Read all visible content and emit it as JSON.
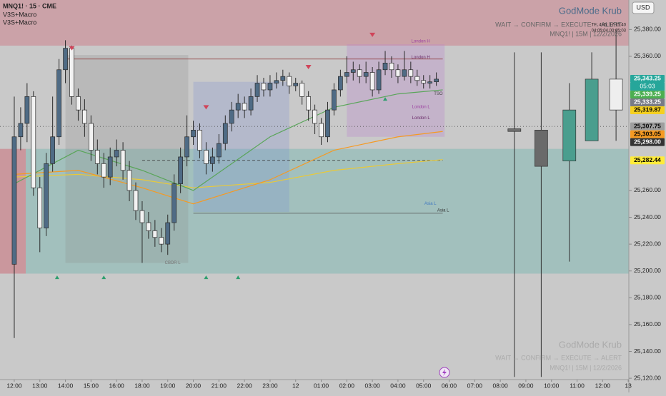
{
  "chart_data": {
    "type": "candlestick",
    "symbol": "MNQ1! · 15 · CME",
    "indicators": [
      "V3S+Macro",
      "V3S+Macro"
    ],
    "watermark": {
      "title": "GodMode Krub",
      "subtitle": "WAIT → CONFIRM → EXECUTE → ALERT",
      "info": "MNQ1! | 15M | 12/2/2026"
    },
    "timer_lines": [
      "TF: 4H5: 17:15:40",
      "04:05:04 00:05:03"
    ],
    "currency": "USD",
    "countdown": "05:03",
    "up_color": "#4f6b85",
    "down_color": "#f2f2f2",
    "ylim": [
      25119,
      25402
    ],
    "yticks": [
      {
        "value": 25380,
        "label": "25,380.00"
      },
      {
        "value": 25360,
        "label": "25,360.00"
      },
      {
        "value": 25260,
        "label": "25,260.00"
      },
      {
        "value": 25240,
        "label": "25,240.00"
      },
      {
        "value": 25220,
        "label": "25,220.00"
      },
      {
        "value": 25200,
        "label": "25,200.00"
      },
      {
        "value": 25180,
        "label": "25,180.00"
      },
      {
        "value": 25160,
        "label": "25,160.00"
      },
      {
        "value": 25140,
        "label": "25,140.00"
      },
      {
        "value": 25120,
        "label": "25,120.00"
      }
    ],
    "xlim": [
      -2.23,
      96.1
    ],
    "xticks": [
      {
        "value": 0,
        "label": "12:00"
      },
      {
        "value": 4,
        "label": "13:00"
      },
      {
        "value": 8,
        "label": "14:00"
      },
      {
        "value": 12,
        "label": "15:00"
      },
      {
        "value": 16,
        "label": "16:00"
      },
      {
        "value": 20,
        "label": "18:00"
      },
      {
        "value": 24,
        "label": "19:00"
      },
      {
        "value": 28,
        "label": "20:00"
      },
      {
        "value": 32,
        "label": "21:00"
      },
      {
        "value": 36,
        "label": "22:00"
      },
      {
        "value": 40,
        "label": "23:00"
      },
      {
        "value": 44,
        "label": "12"
      },
      {
        "value": 48,
        "label": "01:00"
      },
      {
        "value": 52,
        "label": "02:00"
      },
      {
        "value": 56,
        "label": "03:00"
      },
      {
        "value": 60,
        "label": "04:00"
      },
      {
        "value": 64,
        "label": "05:00"
      },
      {
        "value": 68,
        "label": "06:00"
      },
      {
        "value": 72,
        "label": "07:00"
      },
      {
        "value": 76,
        "label": "08:00"
      },
      {
        "value": 80,
        "label": "09:00"
      },
      {
        "value": 84,
        "label": "10:00"
      },
      {
        "value": 88,
        "label": "11:00"
      },
      {
        "value": 92,
        "label": "12:00"
      },
      {
        "value": 96,
        "label": "13"
      }
    ],
    "open": [
      25205,
      25300,
      25310,
      25330,
      25262,
      25232,
      25280,
      25300,
      25350,
      25366,
      25330,
      25320,
      25310,
      25290,
      25280,
      25270,
      25285,
      25290,
      25275,
      25260,
      25245,
      25236,
      25230,
      25225,
      25220,
      25236,
      25265,
      25285,
      25300,
      25305,
      25290,
      25280,
      25285,
      25295,
      25310,
      25320,
      25325,
      25320,
      25330,
      25340,
      25335,
      25340,
      25342,
      25345,
      25338,
      25340,
      25330,
      25320,
      25310,
      25300,
      25320,
      25335,
      25345,
      25348,
      25350,
      25345,
      25348,
      25335,
      25350,
      25355,
      25350,
      25345,
      25350,
      25345,
      25342,
      25340,
      25341
    ],
    "high": [
      25330,
      25322,
      25340,
      25334,
      25270,
      25288,
      25330,
      25358,
      25372,
      25368,
      25336,
      25328,
      25316,
      25298,
      25288,
      25292,
      25298,
      25296,
      25282,
      25266,
      25252,
      25244,
      25238,
      25232,
      25242,
      25272,
      25292,
      25316,
      25312,
      25310,
      25296,
      25292,
      25302,
      25316,
      25326,
      25332,
      25330,
      25336,
      25346,
      25344,
      25346,
      25348,
      25350,
      25348,
      25344,
      25342,
      25334,
      25324,
      25314,
      25326,
      25340,
      25350,
      25360,
      25356,
      25354,
      25356,
      25352,
      25356,
      25364,
      25360,
      25354,
      25364,
      25356,
      25350,
      25346,
      25346,
      25348
    ],
    "low": [
      25150,
      25290,
      25296,
      25256,
      25214,
      25226,
      25274,
      25294,
      25340,
      25324,
      25312,
      25300,
      25282,
      25272,
      25262,
      25264,
      25278,
      25268,
      25252,
      25238,
      25206,
      25224,
      25218,
      25214,
      25212,
      25230,
      25258,
      25278,
      25294,
      25284,
      25272,
      25274,
      25280,
      25290,
      25304,
      25314,
      25314,
      25316,
      25326,
      25330,
      25330,
      25336,
      25338,
      25332,
      25334,
      25324,
      25312,
      25302,
      25294,
      25296,
      25316,
      25330,
      25340,
      25342,
      25340,
      25340,
      25330,
      25332,
      25346,
      25344,
      25340,
      25342,
      25340,
      25338,
      25336,
      25336,
      25338
    ],
    "close": [
      25300,
      25310,
      25330,
      25262,
      25232,
      25280,
      25300,
      25350,
      25366,
      25330,
      25320,
      25310,
      25290,
      25280,
      25270,
      25285,
      25290,
      25275,
      25260,
      25245,
      25236,
      25230,
      25225,
      25220,
      25236,
      25265,
      25285,
      25300,
      25305,
      25290,
      25280,
      25285,
      25295,
      25310,
      25320,
      25325,
      25320,
      25330,
      25340,
      25335,
      25340,
      25342,
      25345,
      25338,
      25340,
      25330,
      25320,
      25310,
      25300,
      25320,
      25335,
      25345,
      25348,
      25350,
      25345,
      25348,
      25335,
      25350,
      25355,
      25350,
      25345,
      25350,
      25345,
      25342,
      25340,
      25341,
      25343
    ],
    "projection": {
      "x": [
        78.2,
        82.4,
        86.8,
        90.3,
        94.1
      ],
      "open": [
        25306,
        25278,
        25282,
        25297,
        25320
      ],
      "high": [
        25363,
        25363,
        25340,
        25363,
        25380
      ],
      "low": [
        25121,
        25121,
        25207,
        25297,
        25297
      ],
      "close": [
        25304,
        25305,
        25320,
        25343,
        25343
      ],
      "colors": [
        "#6f6f6f",
        "#6a6a6a",
        "#4a9e8e",
        "#4a9e8e",
        "#eeeeee"
      ]
    },
    "zones": [
      {
        "x": [
          -2.23,
          96.1
        ],
        "y": [
          25368,
          25402
        ],
        "color": "rgba(205,90,105,0.35)"
      },
      {
        "x": [
          -2.23,
          1.8
        ],
        "y": [
          25198,
          25291
        ],
        "color": "rgba(205,90,105,0.45)"
      },
      {
        "x": [
          1.8,
          96.1
        ],
        "y": [
          25198,
          25291
        ],
        "color": "rgba(90,175,165,0.35)"
      },
      {
        "x": [
          8,
          27.2
        ],
        "y": [
          25206,
          25361
        ],
        "color": "rgba(140,140,140,0.25)"
      },
      {
        "x": [
          28,
          43
        ],
        "y": [
          25244,
          25341
        ],
        "color": "rgba(120,140,210,0.25)"
      },
      {
        "x": [
          52,
          67.3
        ],
        "y": [
          25300,
          25369
        ],
        "color": "rgba(185,130,205,0.3)"
      }
    ],
    "levels": [
      {
        "x": [
          20,
          67
        ],
        "value": 25282.44,
        "color": "#333",
        "dash": "4 3"
      },
      {
        "x": [
          -2.23,
          96.1
        ],
        "value": 25307.75,
        "color": "#555",
        "dash": "1 3"
      },
      {
        "x": [
          28,
          67
        ],
        "value": 25243,
        "color": "#555",
        "dash": ""
      },
      {
        "x": [
          8,
          67
        ],
        "value": 25358,
        "color": "#8a3030",
        "dash": ""
      }
    ],
    "annotations": [
      {
        "text": "London H",
        "x": 65,
        "value": 25369,
        "color": "#9b3fa0"
      },
      {
        "text": "London H",
        "x": 65,
        "value": 25357,
        "color": "#6a2a6a"
      },
      {
        "text": "London L",
        "x": 65,
        "value": 25320,
        "color": "#9b3fa0"
      },
      {
        "text": "London L",
        "x": 65,
        "value": 25312,
        "color": "#6a2a6a"
      },
      {
        "text": "Asia L",
        "x": 66,
        "value": 25248,
        "color": "#3f78c0"
      },
      {
        "text": "Asia L",
        "x": 68,
        "value": 25243,
        "color": "#333"
      },
      {
        "text": "CBDR L",
        "x": 26,
        "value": 25204,
        "color": "#777"
      },
      {
        "text": "TSO",
        "x": 67,
        "value": 25330,
        "color": "#444"
      }
    ],
    "ma_lines": [
      {
        "color": "#e8c93a",
        "x": [
          0,
          10,
          20,
          28,
          40,
          50,
          60,
          67
        ],
        "values": [
          25270,
          25272,
          25268,
          25262,
          25266,
          25275,
          25280,
          25283
        ]
      },
      {
        "color": "#f59a23",
        "x": [
          0,
          10,
          20,
          28,
          40,
          50,
          60,
          67
        ],
        "values": [
          25272,
          25275,
          25262,
          25250,
          25268,
          25290,
          25300,
          25304
        ]
      },
      {
        "color": "#5aa55a",
        "x": [
          0,
          10,
          20,
          28,
          40,
          50,
          60,
          67
        ],
        "values": [
          25265,
          25290,
          25275,
          25260,
          25300,
          25322,
          25332,
          25335
        ]
      }
    ],
    "signals_up": {
      "x": [
        6.7,
        14,
        30,
        35,
        58
      ],
      "values": [
        25195,
        25195,
        25195,
        25195,
        25328
      ]
    },
    "signals_down": {
      "x": [
        9,
        30,
        46,
        56
      ],
      "values": [
        25366,
        25322,
        25352,
        25376
      ]
    },
    "price_labels": [
      {
        "value": 25343.25,
        "label": "25,343.25",
        "color": "#26a69a",
        "text_color": "#fff"
      },
      {
        "value": 25339.25,
        "label": "25,339.25",
        "color": "#4caf50",
        "text_color": "#fff"
      },
      {
        "value": 25333.25,
        "label": "25,333.25",
        "color": "#787b86",
        "text_color": "#fff"
      },
      {
        "value": 25319.87,
        "label": "25,319.87",
        "color": "#f5d020",
        "text_color": "#000"
      },
      {
        "value": 25307.75,
        "label": "25,307.75",
        "color": "#9e9e9e",
        "text_color": "#000"
      },
      {
        "value": 25303.05,
        "label": "25,303.05",
        "color": "#f59a23",
        "text_color": "#000"
      },
      {
        "value": 25298.0,
        "label": "25,298.00",
        "color": "#333333",
        "text_color": "#fff"
      },
      {
        "value": 25282.44,
        "label": "25,282.44",
        "color": "#ffeb3b",
        "text_color": "#000"
      }
    ]
  }
}
